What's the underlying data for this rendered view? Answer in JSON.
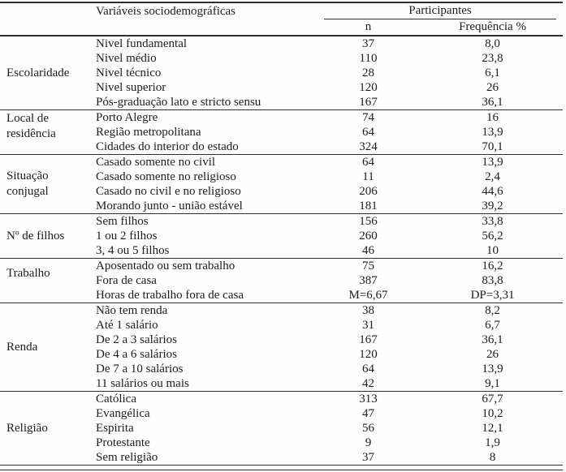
{
  "colors": {
    "ink": "#1d1d1d",
    "rule": "#2f2f2f",
    "paper": "#fdfdfd"
  },
  "table": {
    "header": {
      "variables_label": "Variáveis sociodemográficas",
      "participants_label": "Participantes",
      "n_label": "n",
      "frequency_label": "Frequência %"
    },
    "groups": [
      {
        "category": "Escolaridade",
        "label_valign": "middle",
        "rows": [
          {
            "variable": "Nivel fundamental",
            "n": "37",
            "freq": "8,0"
          },
          {
            "variable": "Nivel médio",
            "n": "110",
            "freq": "23,8"
          },
          {
            "variable": "Nivel técnico",
            "n": "28",
            "freq": "6,1"
          },
          {
            "variable": "Nivel superior",
            "n": "120",
            "freq": "26"
          },
          {
            "variable": "Pós-graduação lato e stricto sensu",
            "n": "167",
            "freq": "36,1"
          }
        ]
      },
      {
        "category": "Local de residência",
        "label_valign": "top",
        "rows": [
          {
            "variable": "Porto Alegre",
            "n": "74",
            "freq": "16"
          },
          {
            "variable": "Região metropolitana",
            "n": "64",
            "freq": "13,9"
          },
          {
            "variable": "Cidades do interior do estado",
            "n": "324",
            "freq": "70,1"
          }
        ]
      },
      {
        "category": "Situação conjugal",
        "label_valign": "middle",
        "rows": [
          {
            "variable": "Casado somente no civil",
            "n": "64",
            "freq": "13,9"
          },
          {
            "variable": "Casado somente no religioso",
            "n": "11",
            "freq": "2,4"
          },
          {
            "variable": "Casado no civil e no religioso",
            "n": "206",
            "freq": "44,6"
          },
          {
            "variable": "Morando junto - união estável",
            "n": "181",
            "freq": "39,2"
          }
        ]
      },
      {
        "category": "Nº de filhos",
        "label_valign": "middle",
        "rows": [
          {
            "variable": "Sem filhos",
            "n": "156",
            "freq": "33,8"
          },
          {
            "variable": "1 ou 2 filhos",
            "n": "260",
            "freq": "56,2"
          },
          {
            "variable": "3, 4 ou 5 filhos",
            "n": "46",
            "freq": "10"
          }
        ]
      },
      {
        "category": "Trabalho",
        "label_valign": "high",
        "rows": [
          {
            "variable": "Aposentado ou sem trabalho",
            "n": "75",
            "freq": "16,2"
          },
          {
            "variable": "Fora de casa",
            "n": "387",
            "freq": "83,8"
          },
          {
            "variable": "Horas de trabalho fora de casa",
            "n": "M=6,67",
            "freq": "DP=3,31"
          }
        ]
      },
      {
        "category": "Renda",
        "label_valign": "middle",
        "rows": [
          {
            "variable": "Não tem renda",
            "n": "38",
            "freq": "8,2"
          },
          {
            "variable": "Até 1 salário",
            "n": "31",
            "freq": "6,7"
          },
          {
            "variable": "De 2 a 3 salários",
            "n": "167",
            "freq": "36,1"
          },
          {
            "variable": "De 4 a 6 salários",
            "n": "120",
            "freq": "26"
          },
          {
            "variable": "De 7 a 10 salários",
            "n": "64",
            "freq": "13,9"
          },
          {
            "variable": "11 salários ou mais",
            "n": "42",
            "freq": "9,1"
          }
        ]
      },
      {
        "category": "Religião",
        "label_valign": "middle",
        "rows": [
          {
            "variable": "Católica",
            "n": "313",
            "freq": "67,7"
          },
          {
            "variable": "Evangélica",
            "n": "47",
            "freq": "10,2"
          },
          {
            "variable": "Espirita",
            "n": "56",
            "freq": "12,1"
          },
          {
            "variable": "Protestante",
            "n": "9",
            "freq": "1,9"
          },
          {
            "variable": "Sem religião",
            "n": "37",
            "freq": "8"
          }
        ]
      }
    ]
  }
}
